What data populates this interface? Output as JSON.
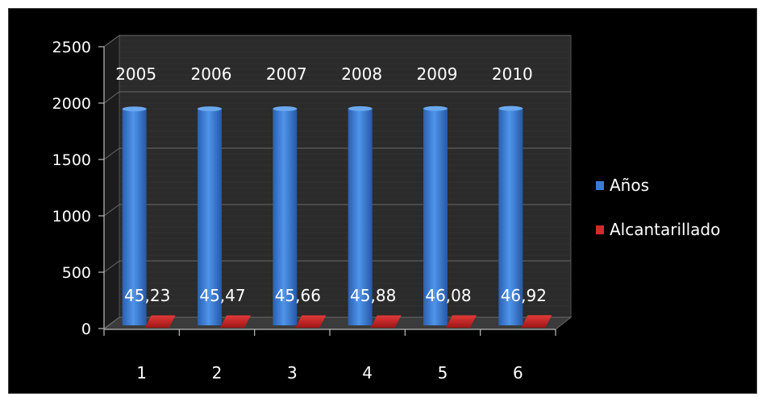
{
  "chart_data": {
    "type": "bar",
    "categories": [
      "1",
      "2",
      "3",
      "4",
      "5",
      "6"
    ],
    "series": [
      {
        "name": "Años",
        "color": "#3a7bd5",
        "values": [
          2005,
          2006,
          2007,
          2008,
          2009,
          2010
        ],
        "data_labels": [
          "2005",
          "2006",
          "2007",
          "2008",
          "2009",
          "2010"
        ]
      },
      {
        "name": "Alcantarillado",
        "color": "#d12b2b",
        "values": [
          45.23,
          45.47,
          45.66,
          45.88,
          46.08,
          46.92
        ],
        "data_labels": [
          "45,23",
          "45,47",
          "45,66",
          "45,88",
          "46,08",
          "46,92"
        ]
      }
    ],
    "y_ticks": [
      "0",
      "500",
      "1000",
      "1500",
      "2000",
      "2500"
    ],
    "ylim": [
      0,
      2500
    ],
    "grid": true,
    "legend_position": "right",
    "background": "#000000",
    "title": "",
    "xlabel": "",
    "ylabel": ""
  }
}
